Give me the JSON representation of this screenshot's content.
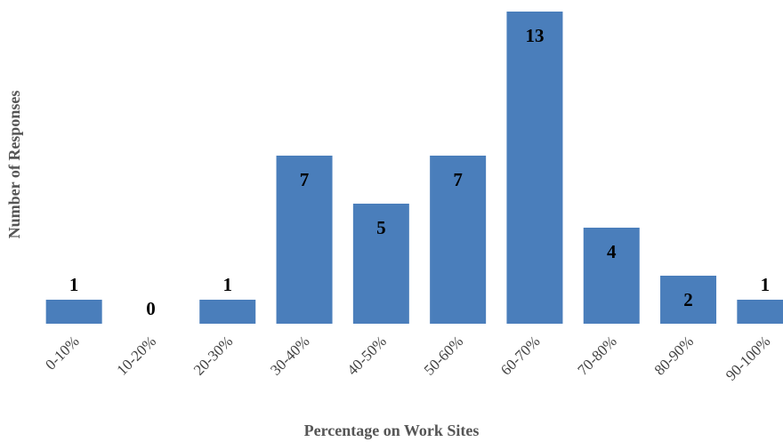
{
  "chart_data": {
    "type": "bar",
    "x_label": "Percentage on Work Sites",
    "y_label": "Number of Responses",
    "categories": [
      "0-10%",
      "10-20%",
      "20-30%",
      "30-40%",
      "40-50%",
      "50-60%",
      "60-70%",
      "70-80%",
      "80-90%",
      "90-100%"
    ],
    "values": [
      1,
      0,
      1,
      7,
      5,
      7,
      13,
      4,
      2,
      1
    ],
    "color": "#4a7ebb",
    "ylim": [
      0,
      13
    ]
  }
}
